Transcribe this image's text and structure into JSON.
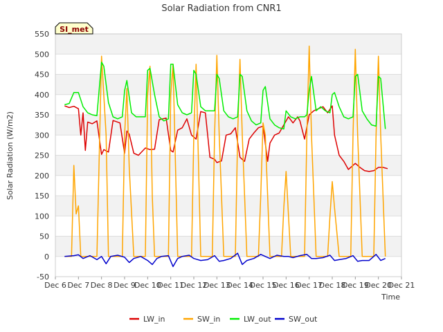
{
  "chart_data": {
    "type": "line",
    "title": "Solar Radiation from CNR1",
    "xlabel": "Time",
    "ylabel": "Solar Radiation (W/m2)",
    "site_label": "SI_met",
    "xlim": [
      6,
      21
    ],
    "ylim": [
      -50,
      550
    ],
    "x_ticks": [
      6,
      7,
      8,
      9,
      10,
      11,
      12,
      13,
      14,
      15,
      16,
      17,
      18,
      19,
      20,
      21
    ],
    "x_tick_labels": [
      "Dec 6",
      "Dec 7",
      "Dec 8",
      "Dec 9",
      "Dec 10",
      "Dec 11",
      "Dec 12",
      "Dec 13",
      "Dec 14",
      "Dec 15",
      "Dec 16",
      "Dec 17",
      "Dec 18",
      "Dec 19",
      "Dec 20",
      "Dec 21"
    ],
    "y_ticks": [
      -50,
      0,
      50,
      100,
      150,
      200,
      250,
      300,
      350,
      400,
      450,
      500,
      550
    ],
    "legend_position": "bottom-center",
    "series": [
      {
        "name": "LW_in",
        "color": "#dd0000",
        "x": [
          6.4,
          6.6,
          6.8,
          7.0,
          7.1,
          7.2,
          7.3,
          7.4,
          7.6,
          7.8,
          8.0,
          8.1,
          8.3,
          8.5,
          8.8,
          9.0,
          9.1,
          9.2,
          9.4,
          9.6,
          9.9,
          10.1,
          10.3,
          10.5,
          10.8,
          11.0,
          11.1,
          11.3,
          11.5,
          11.7,
          11.9,
          12.1,
          12.3,
          12.5,
          12.7,
          12.9,
          13.0,
          13.2,
          13.4,
          13.6,
          13.8,
          14.0,
          14.2,
          14.4,
          14.6,
          14.8,
          15.0,
          15.2,
          15.3,
          15.5,
          15.7,
          15.9,
          16.1,
          16.3,
          16.5,
          16.6,
          16.8,
          17.0,
          17.2,
          17.4,
          17.6,
          17.8,
          18.0,
          18.1,
          18.3,
          18.5,
          18.7,
          18.9,
          19.0,
          19.2,
          19.4,
          19.6,
          19.8,
          20.0,
          20.2,
          20.4
        ],
        "y": [
          372,
          368,
          371,
          365,
          300,
          355,
          262,
          332,
          328,
          335,
          252,
          264,
          258,
          336,
          330,
          255,
          310,
          302,
          255,
          250,
          268,
          264,
          265,
          338,
          342,
          262,
          258,
          312,
          318,
          340,
          300,
          290,
          358,
          355,
          245,
          240,
          232,
          236,
          300,
          303,
          318,
          245,
          235,
          290,
          305,
          318,
          322,
          235,
          280,
          300,
          305,
          325,
          345,
          330,
          345,
          335,
          290,
          350,
          360,
          365,
          370,
          355,
          372,
          300,
          250,
          235,
          215,
          225,
          230,
          220,
          212,
          210,
          212,
          220,
          220,
          217
        ]
      },
      {
        "name": "SW_in",
        "color": "#ffa500",
        "x": [
          6.4,
          6.7,
          6.8,
          6.9,
          7.0,
          7.1,
          7.3,
          7.8,
          8.0,
          8.2,
          8.3,
          8.5,
          8.9,
          9.0,
          9.1,
          9.2,
          9.4,
          9.9,
          10.0,
          10.1,
          10.2,
          10.3,
          10.9,
          11.0,
          11.1,
          11.3,
          11.9,
          12.0,
          12.1,
          12.3,
          12.8,
          12.9,
          13.0,
          13.1,
          13.3,
          13.8,
          13.9,
          14.0,
          14.1,
          14.3,
          14.8,
          14.9,
          15.0,
          15.1,
          15.3,
          15.8,
          15.9,
          16.0,
          16.2,
          16.8,
          16.9,
          17.0,
          17.1,
          17.3,
          17.8,
          17.9,
          18.0,
          18.1,
          18.3,
          18.8,
          18.9,
          19.0,
          19.1,
          19.3,
          19.8,
          19.9,
          20.0,
          20.1,
          20.3
        ],
        "y": [
          0,
          0,
          225,
          105,
          125,
          0,
          0,
          0,
          495,
          300,
          0,
          0,
          0,
          300,
          415,
          220,
          0,
          0,
          400,
          470,
          150,
          0,
          0,
          400,
          475,
          0,
          0,
          300,
          475,
          0,
          0,
          300,
          497,
          300,
          0,
          0,
          300,
          487,
          300,
          0,
          0,
          150,
          330,
          300,
          0,
          0,
          120,
          210,
          0,
          0,
          300,
          520,
          300,
          0,
          0,
          100,
          185,
          120,
          0,
          0,
          300,
          512,
          300,
          0,
          0,
          300,
          495,
          300,
          0
        ]
      },
      {
        "name": "LW_out",
        "color": "#00ee00",
        "x": [
          6.4,
          6.6,
          6.8,
          7.0,
          7.2,
          7.4,
          7.6,
          7.8,
          8.0,
          8.1,
          8.3,
          8.5,
          8.7,
          8.9,
          9.0,
          9.1,
          9.3,
          9.5,
          9.7,
          9.9,
          10.0,
          10.1,
          10.3,
          10.5,
          10.7,
          10.9,
          11.0,
          11.1,
          11.3,
          11.5,
          11.7,
          11.9,
          12.0,
          12.1,
          12.3,
          12.5,
          12.7,
          12.9,
          13.0,
          13.1,
          13.3,
          13.5,
          13.7,
          13.9,
          14.0,
          14.1,
          14.3,
          14.5,
          14.7,
          14.9,
          15.0,
          15.1,
          15.3,
          15.5,
          15.7,
          15.9,
          16.0,
          16.2,
          16.4,
          16.6,
          16.8,
          16.9,
          17.0,
          17.1,
          17.3,
          17.5,
          17.7,
          17.9,
          18.0,
          18.1,
          18.3,
          18.5,
          18.7,
          18.9,
          19.0,
          19.1,
          19.3,
          19.5,
          19.7,
          19.9,
          20.0,
          20.1,
          20.3
        ],
        "y": [
          375,
          378,
          405,
          405,
          370,
          355,
          350,
          348,
          480,
          470,
          380,
          345,
          340,
          345,
          410,
          435,
          355,
          345,
          345,
          345,
          460,
          465,
          400,
          345,
          335,
          340,
          475,
          475,
          375,
          355,
          350,
          355,
          460,
          450,
          370,
          360,
          360,
          360,
          450,
          440,
          360,
          345,
          340,
          345,
          450,
          445,
          360,
          335,
          325,
          330,
          410,
          420,
          340,
          325,
          318,
          315,
          360,
          345,
          340,
          345,
          345,
          350,
          410,
          445,
          360,
          370,
          360,
          355,
          400,
          405,
          370,
          345,
          340,
          345,
          445,
          450,
          360,
          340,
          325,
          322,
          445,
          440,
          315
        ]
      },
      {
        "name": "SW_out",
        "color": "#0000cc",
        "x": [
          6.4,
          6.8,
          7.0,
          7.2,
          7.5,
          7.8,
          8.0,
          8.2,
          8.4,
          8.7,
          9.0,
          9.2,
          9.4,
          9.7,
          10.0,
          10.2,
          10.4,
          10.6,
          10.9,
          11.1,
          11.3,
          11.5,
          11.8,
          12.0,
          12.3,
          12.6,
          12.9,
          13.1,
          13.3,
          13.6,
          13.9,
          14.1,
          14.3,
          14.6,
          14.9,
          15.1,
          15.3,
          15.6,
          15.9,
          16.1,
          16.3,
          16.6,
          16.9,
          17.1,
          17.3,
          17.6,
          17.9,
          18.1,
          18.3,
          18.6,
          18.9,
          19.1,
          19.3,
          19.6,
          19.9,
          20.1,
          20.3
        ],
        "y": [
          0,
          2,
          4,
          -5,
          2,
          -8,
          0,
          -18,
          0,
          3,
          -2,
          -15,
          -5,
          0,
          -10,
          -20,
          -5,
          0,
          2,
          -25,
          -5,
          0,
          3,
          -5,
          -10,
          -8,
          2,
          -12,
          -10,
          -5,
          8,
          -20,
          -10,
          -5,
          5,
          0,
          -5,
          3,
          0,
          0,
          -3,
          2,
          5,
          -5,
          -5,
          -3,
          3,
          -10,
          -8,
          -5,
          2,
          -12,
          -10,
          -10,
          5,
          -10,
          -5
        ]
      }
    ]
  }
}
